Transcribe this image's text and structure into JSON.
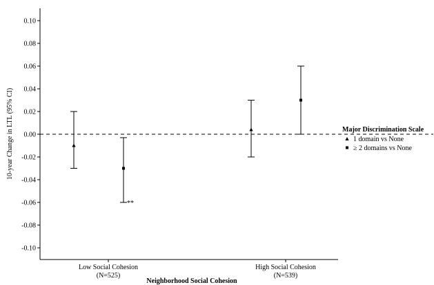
{
  "chart_data": {
    "type": "scatter",
    "ylabel": "10-year Change in LTL (95% CI)",
    "xlabel": "Neighborhood Social Cohesion",
    "ylim": [
      -0.11,
      0.11
    ],
    "y_ticks": [
      0.1,
      0.08,
      0.06,
      0.04,
      0.02,
      0.0,
      -0.02,
      -0.04,
      -0.06,
      -0.08,
      -0.1
    ],
    "y_tick_labels": [
      "0.10",
      "0.08",
      "0.06",
      "0.04",
      "0.02",
      "0.00",
      "-0.02",
      "-0.04",
      "-0.06",
      "-0.08",
      "-0.10"
    ],
    "categories": [
      {
        "label": "Low Social Cohesion",
        "sublabel": "(N=525)"
      },
      {
        "label": "High Social Cohesion",
        "sublabel": "(N=539)"
      }
    ],
    "reference_line": 0.0,
    "legend": {
      "title": "Major Discrimination Scale",
      "placement": "right",
      "entries": [
        {
          "marker": "triangle",
          "label": "1 domain vs None"
        },
        {
          "marker": "square",
          "label": "≥ 2 domains vs None"
        }
      ]
    },
    "series": [
      {
        "name": "1 domain vs None",
        "marker": "triangle",
        "points": [
          {
            "category": "Low Social Cohesion",
            "estimate": -0.01,
            "ci_low": -0.03,
            "ci_high": 0.02
          },
          {
            "category": "High Social Cohesion",
            "estimate": 0.004,
            "ci_low": -0.02,
            "ci_high": 0.03
          }
        ]
      },
      {
        "name": "≥ 2 domains vs None",
        "marker": "square",
        "points": [
          {
            "category": "Low Social Cohesion",
            "estimate": -0.03,
            "ci_low": -0.06,
            "ci_high": -0.003,
            "annotation": "**"
          },
          {
            "category": "High Social Cohesion",
            "estimate": 0.03,
            "ci_low": 0.0,
            "ci_high": 0.06
          }
        ]
      }
    ]
  }
}
